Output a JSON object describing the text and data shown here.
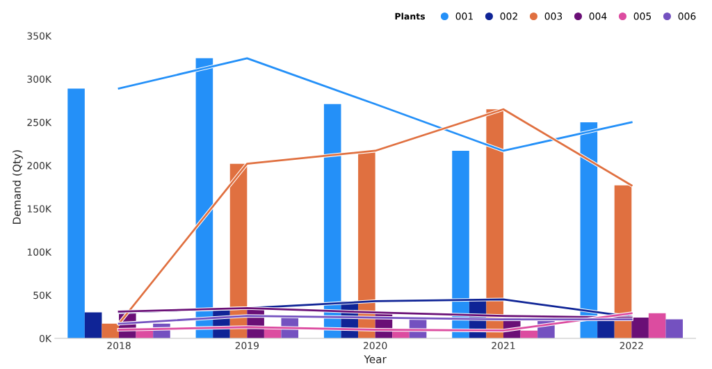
{
  "chart_data": {
    "type": "bar",
    "xlabel": "Year",
    "ylabel": "Demand (Qty)",
    "legend_title": "Plants",
    "legend": "top right",
    "grid": false,
    "categories": [
      "2018",
      "2019",
      "2020",
      "2021",
      "2022"
    ],
    "ylim": [
      0,
      350000
    ],
    "yticks": [
      {
        "value": 0,
        "label": "0K"
      },
      {
        "value": 50000,
        "label": "50K"
      },
      {
        "value": 100000,
        "label": "100K"
      },
      {
        "value": 150000,
        "label": "150K"
      },
      {
        "value": 200000,
        "label": "200K"
      },
      {
        "value": 250000,
        "label": "250K"
      },
      {
        "value": 300000,
        "label": "300K"
      },
      {
        "value": 350000,
        "label": "350K"
      }
    ],
    "series": [
      {
        "name": "001",
        "color": "#2490f8",
        "values": [
          289000,
          324000,
          271000,
          217000,
          250000
        ]
      },
      {
        "name": "002",
        "color": "#0f2496",
        "values": [
          30000,
          35000,
          43000,
          45000,
          25000
        ]
      },
      {
        "name": "003",
        "color": "#e07040",
        "values": [
          17000,
          202000,
          217000,
          265000,
          177000
        ]
      },
      {
        "name": "004",
        "color": "#6a0f76",
        "values": [
          31000,
          35000,
          30000,
          26000,
          24000
        ]
      },
      {
        "name": "005",
        "color": "#dc4ca0",
        "values": [
          10000,
          13000,
          10000,
          9000,
          29000
        ]
      },
      {
        "name": "006",
        "color": "#7451c0",
        "values": [
          17000,
          26000,
          24000,
          22000,
          22000
        ]
      },
      {
        "type": "line",
        "color": "#2490f8",
        "values": [
          289000,
          324000,
          271000,
          217000,
          250000
        ]
      },
      {
        "type": "line",
        "color": "#0f2496",
        "values": [
          30000,
          35000,
          43000,
          45000,
          25000
        ]
      },
      {
        "type": "line",
        "color": "#e07040",
        "values": [
          17000,
          202000,
          217000,
          265000,
          177000
        ]
      },
      {
        "type": "line",
        "color": "#6a0f76",
        "values": [
          31000,
          35000,
          30000,
          26000,
          24000
        ]
      },
      {
        "type": "line",
        "color": "#dc4ca0",
        "values": [
          10000,
          13000,
          10000,
          9000,
          29000
        ]
      },
      {
        "type": "line",
        "color": "#7451c0",
        "values": [
          17000,
          26000,
          24000,
          22000,
          22000
        ]
      }
    ]
  }
}
